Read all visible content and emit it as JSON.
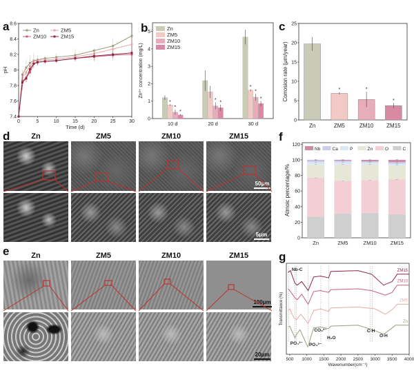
{
  "panels": {
    "a": "a",
    "b": "b",
    "c": "c",
    "d": "d",
    "e": "e",
    "f": "f",
    "g": "g"
  },
  "samples": [
    "Zn",
    "ZM5",
    "ZM10",
    "ZM15"
  ],
  "colors": {
    "Zn": "#c9cbb6",
    "ZM5": "#f3c9c5",
    "ZM10": "#e7adba",
    "ZM15": "#d98aa2",
    "line_Zn": "#9a9c7c",
    "line_ZM5": "#eaa9aa",
    "line_ZM10": "#c9607a",
    "line_ZM15": "#8c2442",
    "red_box": "#c0302f"
  },
  "sem": {
    "d": {
      "titles": [
        "Zn",
        "ZM5",
        "ZM10",
        "ZM15"
      ],
      "scale_top": "50μm",
      "scale_bottom": "5μm"
    },
    "e": {
      "titles": [
        "Zn",
        "ZM5",
        "ZM10",
        "ZM15"
      ],
      "scale_top": "100μm",
      "scale_bottom": "20μm"
    }
  },
  "chart_data": [
    {
      "id": "a",
      "type": "line",
      "xlabel": "Time (d)",
      "ylabel": "pH",
      "xlim": [
        0,
        30
      ],
      "ylim": [
        7.4,
        8.6
      ],
      "xticks": [
        0,
        5,
        10,
        15,
        20,
        25,
        30
      ],
      "yticks": [
        7.4,
        7.6,
        7.8,
        8.0,
        8.2,
        8.4,
        8.6
      ],
      "legend": "top-left",
      "x": [
        0,
        1,
        2,
        3,
        4,
        5,
        7,
        10,
        15,
        20,
        25,
        30
      ],
      "series": [
        {
          "name": "Zn",
          "marker": "square",
          "values": [
            7.4,
            7.94,
            8.03,
            8.09,
            8.12,
            8.13,
            8.15,
            8.165,
            8.19,
            8.25,
            8.31,
            8.44
          ],
          "errors": [
            0,
            0.06,
            0.1,
            0.1,
            0.1,
            0.06,
            0.03,
            0.05,
            0.08,
            0.03,
            0.1,
            0.1
          ]
        },
        {
          "name": "ZM5",
          "marker": "circle",
          "values": [
            7.4,
            7.9,
            7.97,
            8.05,
            8.11,
            8.12,
            8.13,
            8.14,
            8.17,
            8.21,
            8.27,
            8.33
          ],
          "errors": [
            0,
            0.1,
            0.08,
            0.1,
            0.08,
            0.05,
            0.04,
            0.04,
            0.06,
            0.05,
            0.08,
            0.08
          ]
        },
        {
          "name": "ZM10",
          "marker": "triangle-up",
          "values": [
            7.4,
            7.86,
            7.9,
            7.97,
            8.08,
            8.1,
            8.11,
            8.12,
            8.15,
            8.17,
            8.19,
            8.2
          ],
          "errors": [
            0,
            0.08,
            0.06,
            0.06,
            0.05,
            0.04,
            0.03,
            0.03,
            0.04,
            0.06,
            0.07,
            0.05
          ]
        },
        {
          "name": "ZM15",
          "marker": "triangle-down",
          "values": [
            7.4,
            7.84,
            7.89,
            8.01,
            8.08,
            8.1,
            8.11,
            8.12,
            8.15,
            8.18,
            8.2,
            8.22
          ],
          "errors": [
            0,
            0.1,
            0.05,
            0.05,
            0.04,
            0.04,
            0.03,
            0.03,
            0.03,
            0.05,
            0.05,
            0.04
          ]
        }
      ]
    },
    {
      "id": "b",
      "type": "bar",
      "ylabel": "Zn²⁺ concentration (mg/L)",
      "categories": [
        "10 d",
        "20 d",
        "30 d"
      ],
      "ylim": [
        0,
        5.5
      ],
      "yticks": [
        0,
        1,
        2,
        3,
        4,
        5
      ],
      "legend": "top-left",
      "series": [
        {
          "name": "Zn",
          "values": [
            1.2,
            2.18,
            4.68
          ],
          "errors": [
            0.13,
            0.6,
            0.42
          ],
          "sig": [
            false,
            false,
            false
          ]
        },
        {
          "name": "ZM5",
          "values": [
            0.78,
            1.53,
            1.63
          ],
          "errors": [
            0.04,
            0.35,
            0.06
          ],
          "sig": [
            true,
            false,
            true
          ]
        },
        {
          "name": "ZM10",
          "values": [
            0.37,
            0.73,
            1.23
          ],
          "errors": [
            0.15,
            0.2,
            0.2
          ],
          "sig": [
            true,
            true,
            true
          ]
        },
        {
          "name": "ZM15",
          "values": [
            0.21,
            0.62,
            0.86
          ],
          "errors": [
            0.04,
            0.18,
            0.15
          ],
          "sig": [
            true,
            true,
            true
          ]
        }
      ],
      "sig_label": "*"
    },
    {
      "id": "c",
      "type": "bar",
      "ylabel": "Corrosion rate (μm/year)",
      "categories": [
        "Zn",
        "ZM5",
        "ZM10",
        "ZM15"
      ],
      "ylim": [
        0,
        25
      ],
      "yticks": [
        0,
        5,
        10,
        15,
        20,
        25
      ],
      "values": [
        19.7,
        6.9,
        5.3,
        3.7
      ],
      "errors": [
        1.8,
        0.3,
        2.0,
        0.7
      ],
      "sig": [
        false,
        true,
        true,
        true
      ],
      "sig_label": "*"
    },
    {
      "id": "f",
      "type": "bar",
      "stacked": true,
      "ylabel": "Atmoic percentage/%",
      "categories": [
        "Zn",
        "ZM5",
        "ZM10",
        "ZM15"
      ],
      "ylim": [
        0,
        120
      ],
      "yticks": [
        0,
        20,
        40,
        60,
        80,
        100,
        120
      ],
      "legend": "top",
      "legend_order": [
        "Nb",
        "Ca",
        "P",
        "Zn",
        "O",
        "C"
      ],
      "series": [
        {
          "name": "C",
          "values": [
            27,
            31,
            32,
            30
          ]
        },
        {
          "name": "O",
          "values": [
            50,
            42,
            42,
            45
          ]
        },
        {
          "name": "Zn",
          "values": [
            17,
            21,
            20,
            18
          ]
        },
        {
          "name": "P",
          "values": [
            3,
            3,
            2.5,
            2
          ]
        },
        {
          "name": "Ca",
          "values": [
            2.5,
            2,
            1.5,
            2
          ]
        },
        {
          "name": "Nb",
          "values": [
            0.5,
            1,
            2,
            3
          ]
        }
      ],
      "series_colors": {
        "C": "#cfcfcf",
        "O": "#f3ced5",
        "Zn": "#e7e7d8",
        "P": "#d8e9f4",
        "Ca": "#cbcdea",
        "Nb": "#c98ca9"
      }
    },
    {
      "id": "g",
      "type": "line",
      "xlabel": "Wavenumber(cm⁻¹)",
      "ylabel": "Transmittance (%)",
      "xlim": [
        400,
        4000
      ],
      "xticks": [
        500,
        1000,
        1500,
        2000,
        2500,
        3000,
        3500,
        4000
      ],
      "series": [
        {
          "name": "Zn",
          "x": [
            450,
            500,
            650,
            700,
            800,
            1030,
            1200,
            1400,
            1640,
            1700,
            2500,
            3000,
            3250,
            3500,
            3600,
            4000
          ],
          "values": [
            30,
            31,
            18,
            22,
            27,
            8,
            29,
            30,
            28,
            31,
            32,
            26,
            22,
            29,
            32,
            32
          ]
        },
        {
          "name": "ZM5",
          "x": [
            450,
            500,
            620,
            700,
            820,
            1040,
            1200,
            1400,
            1640,
            1700,
            2500,
            3000,
            3300,
            3500,
            3650,
            4000
          ],
          "values": [
            48,
            50,
            40,
            38,
            44,
            34,
            48,
            50,
            47,
            51,
            52,
            50,
            44,
            49,
            55,
            55
          ]
        },
        {
          "name": "ZM10",
          "x": [
            450,
            500,
            650,
            720,
            850,
            1040,
            1200,
            1400,
            1640,
            1700,
            2500,
            2900,
            3300,
            3500,
            3650,
            4000
          ],
          "values": [
            72,
            70,
            62,
            60,
            66,
            55,
            69,
            70,
            68,
            71,
            72,
            70,
            65,
            68,
            76,
            76
          ]
        },
        {
          "name": "ZM15",
          "x": [
            450,
            520,
            650,
            720,
            850,
            1040,
            1200,
            1400,
            1640,
            1700,
            2500,
            2900,
            3250,
            3500,
            3650,
            4000
          ],
          "values": [
            90,
            92,
            78,
            76,
            80,
            70,
            85,
            86,
            84,
            91,
            92,
            88,
            76,
            80,
            88,
            88
          ]
        }
      ],
      "reference_lines": [
        470,
        650,
        690,
        1040,
        1410,
        1640,
        2850,
        2920
      ],
      "annotations": [
        "Nb-C",
        "PO₄³⁻",
        "PO₄³⁻",
        "CO₃²⁻",
        "H₂O",
        "C-H",
        "O-H"
      ]
    }
  ]
}
